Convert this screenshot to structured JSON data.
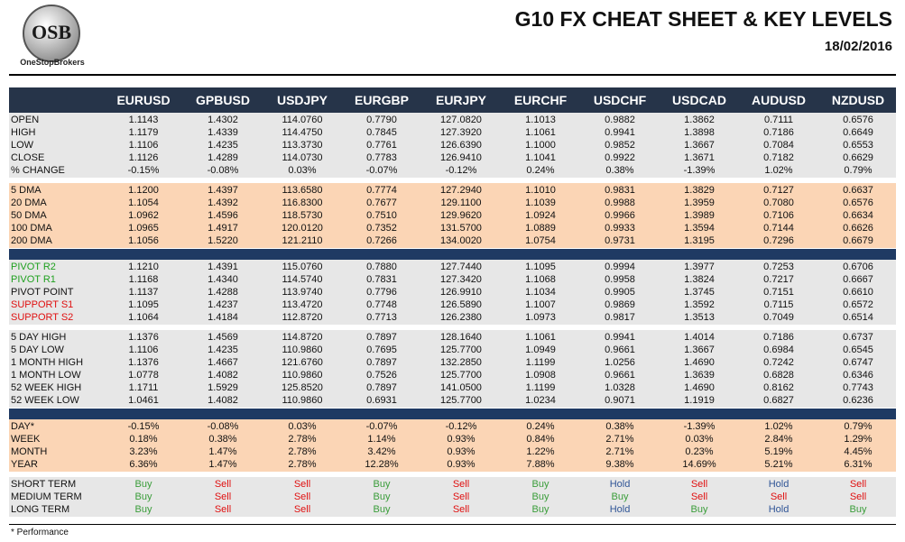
{
  "header": {
    "logo": "OSB",
    "brand": "OneStopBrokers",
    "title": "G10 FX CHEAT SHEET & KEY LEVELS",
    "date": "18/02/2016"
  },
  "table": {
    "columns": [
      "EURUSD",
      "GPBUSD",
      "USDJPY",
      "EURGBP",
      "EURJPY",
      "EURCHF",
      "USDCHF",
      "USDCAD",
      "AUDUSD",
      "NZDUSD"
    ],
    "signal_colors": {
      "Buy": "#3a9d3a",
      "Sell": "#e01010",
      "Hold": "#2f5496"
    },
    "sections": [
      {
        "background": "#e7e7e7",
        "separator": "none",
        "rows": [
          {
            "label": "OPEN",
            "values": [
              "1.1143",
              "1.4302",
              "114.0760",
              "0.7790",
              "127.0820",
              "1.1013",
              "0.9882",
              "1.3862",
              "0.7111",
              "0.6576"
            ]
          },
          {
            "label": "HIGH",
            "values": [
              "1.1179",
              "1.4339",
              "114.4750",
              "0.7845",
              "127.3920",
              "1.1061",
              "0.9941",
              "1.3898",
              "0.7186",
              "0.6649"
            ]
          },
          {
            "label": "LOW",
            "values": [
              "1.1106",
              "1.4235",
              "113.3730",
              "0.7761",
              "126.6390",
              "1.1000",
              "0.9852",
              "1.3667",
              "0.7084",
              "0.6553"
            ]
          },
          {
            "label": "CLOSE",
            "values": [
              "1.1126",
              "1.4289",
              "114.0730",
              "0.7783",
              "126.9410",
              "1.1041",
              "0.9922",
              "1.3671",
              "0.7182",
              "0.6629"
            ]
          },
          {
            "label": "% CHANGE",
            "values": [
              "-0.15%",
              "-0.08%",
              "0.03%",
              "-0.07%",
              "-0.12%",
              "0.24%",
              "0.38%",
              "-1.39%",
              "1.02%",
              "0.79%"
            ]
          }
        ]
      },
      {
        "background": "#fbd5b5",
        "separator": "gap",
        "rows": [
          {
            "label": "5 DMA",
            "values": [
              "1.1200",
              "1.4397",
              "113.6580",
              "0.7774",
              "127.2940",
              "1.1010",
              "0.9831",
              "1.3829",
              "0.7127",
              "0.6637"
            ]
          },
          {
            "label": "20 DMA",
            "values": [
              "1.1054",
              "1.4392",
              "116.8300",
              "0.7677",
              "129.1100",
              "1.1039",
              "0.9988",
              "1.3959",
              "0.7080",
              "0.6576"
            ]
          },
          {
            "label": "50 DMA",
            "values": [
              "1.0962",
              "1.4596",
              "118.5730",
              "0.7510",
              "129.9620",
              "1.0924",
              "0.9966",
              "1.3989",
              "0.7106",
              "0.6634"
            ]
          },
          {
            "label": "100 DMA",
            "values": [
              "1.0965",
              "1.4917",
              "120.0120",
              "0.7352",
              "131.5700",
              "1.0889",
              "0.9933",
              "1.3594",
              "0.7144",
              "0.6626"
            ]
          },
          {
            "label": "200 DMA",
            "values": [
              "1.1056",
              "1.5220",
              "121.2110",
              "0.7266",
              "134.0020",
              "1.0754",
              "0.9731",
              "1.3195",
              "0.7296",
              "0.6679"
            ]
          }
        ]
      },
      {
        "background": "#e7e7e7",
        "separator": "bar",
        "rows": [
          {
            "label": "PIVOT R2",
            "label_color": "#1fa01f",
            "values": [
              "1.1210",
              "1.4391",
              "115.0760",
              "0.7880",
              "127.7440",
              "1.1095",
              "0.9994",
              "1.3977",
              "0.7253",
              "0.6706"
            ]
          },
          {
            "label": "PIVOT R1",
            "label_color": "#1fa01f",
            "values": [
              "1.1168",
              "1.4340",
              "114.5740",
              "0.7831",
              "127.3420",
              "1.1068",
              "0.9958",
              "1.3824",
              "0.7217",
              "0.6667"
            ]
          },
          {
            "label": "PIVOT POINT",
            "values": [
              "1.1137",
              "1.4288",
              "113.9740",
              "0.7796",
              "126.9910",
              "1.1034",
              "0.9905",
              "1.3745",
              "0.7151",
              "0.6610"
            ]
          },
          {
            "label": "SUPPORT S1",
            "label_color": "#e01010",
            "values": [
              "1.1095",
              "1.4237",
              "113.4720",
              "0.7748",
              "126.5890",
              "1.1007",
              "0.9869",
              "1.3592",
              "0.7115",
              "0.6572"
            ]
          },
          {
            "label": "SUPPORT S2",
            "label_color": "#e01010",
            "values": [
              "1.1064",
              "1.4184",
              "112.8720",
              "0.7713",
              "126.2380",
              "1.0973",
              "0.9817",
              "1.3513",
              "0.7049",
              "0.6514"
            ]
          }
        ]
      },
      {
        "background": "#e7e7e7",
        "separator": "gap",
        "rows": [
          {
            "label": "5 DAY HIGH",
            "values": [
              "1.1376",
              "1.4569",
              "114.8720",
              "0.7897",
              "128.1640",
              "1.1061",
              "0.9941",
              "1.4014",
              "0.7186",
              "0.6737"
            ]
          },
          {
            "label": "5 DAY LOW",
            "values": [
              "1.1106",
              "1.4235",
              "110.9860",
              "0.7695",
              "125.7700",
              "1.0949",
              "0.9661",
              "1.3667",
              "0.6984",
              "0.6545"
            ]
          },
          {
            "label": "1 MONTH HIGH",
            "values": [
              "1.1376",
              "1.4667",
              "121.6760",
              "0.7897",
              "132.2850",
              "1.1199",
              "1.0256",
              "1.4690",
              "0.7242",
              "0.6747"
            ]
          },
          {
            "label": "1 MONTH LOW",
            "values": [
              "1.0778",
              "1.4082",
              "110.9860",
              "0.7526",
              "125.7700",
              "1.0908",
              "0.9661",
              "1.3639",
              "0.6828",
              "0.6346"
            ]
          },
          {
            "label": "52 WEEK HIGH",
            "values": [
              "1.1711",
              "1.5929",
              "125.8520",
              "0.7897",
              "141.0500",
              "1.1199",
              "1.0328",
              "1.4690",
              "0.8162",
              "0.7743"
            ]
          },
          {
            "label": "52 WEEK LOW",
            "values": [
              "1.0461",
              "1.4082",
              "110.9860",
              "0.6931",
              "125.7700",
              "1.0234",
              "0.9071",
              "1.1919",
              "0.6827",
              "0.6236"
            ]
          }
        ]
      },
      {
        "background": "#fbd5b5",
        "separator": "bar",
        "rows": [
          {
            "label": "DAY*",
            "values": [
              "-0.15%",
              "-0.08%",
              "0.03%",
              "-0.07%",
              "-0.12%",
              "0.24%",
              "0.38%",
              "-1.39%",
              "1.02%",
              "0.79%"
            ]
          },
          {
            "label": "WEEK",
            "values": [
              "0.18%",
              "0.38%",
              "2.78%",
              "1.14%",
              "0.93%",
              "0.84%",
              "2.71%",
              "0.03%",
              "2.84%",
              "1.29%"
            ]
          },
          {
            "label": "MONTH",
            "values": [
              "3.23%",
              "1.47%",
              "2.78%",
              "3.42%",
              "0.93%",
              "1.22%",
              "2.71%",
              "0.23%",
              "5.19%",
              "4.45%"
            ]
          },
          {
            "label": "YEAR",
            "values": [
              "6.36%",
              "1.47%",
              "2.78%",
              "12.28%",
              "0.93%",
              "7.88%",
              "9.38%",
              "14.69%",
              "5.21%",
              "6.31%"
            ]
          }
        ]
      },
      {
        "background": "#e7e7e7",
        "separator": "gap",
        "rows": [
          {
            "label": "SHORT TERM",
            "values": [
              "Buy",
              "Sell",
              "Sell",
              "Buy",
              "Sell",
              "Buy",
              "Hold",
              "Sell",
              "Hold",
              "Sell"
            ]
          },
          {
            "label": "MEDIUM TERM",
            "values": [
              "Buy",
              "Sell",
              "Sell",
              "Buy",
              "Sell",
              "Buy",
              "Buy",
              "Sell",
              "Sell",
              "Sell"
            ]
          },
          {
            "label": "LONG TERM",
            "values": [
              "Buy",
              "Sell",
              "Sell",
              "Buy",
              "Sell",
              "Buy",
              "Hold",
              "Buy",
              "Hold",
              "Buy"
            ]
          }
        ]
      }
    ]
  },
  "footnote": "* Performance"
}
